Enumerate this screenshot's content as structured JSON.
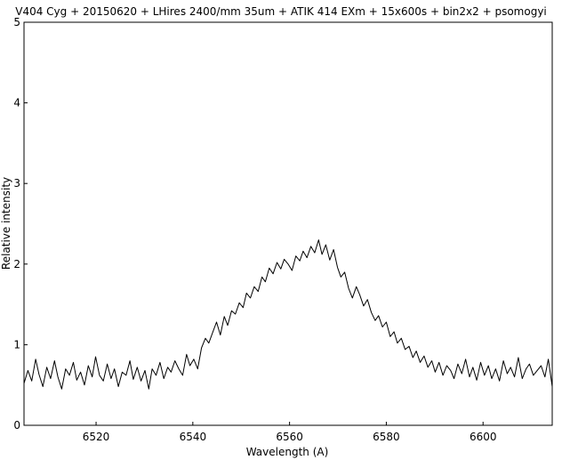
{
  "chart_data": {
    "type": "line",
    "title": "V404 Cyg + 20150620 + LHires 2400/mm 35um + ATIK 414 EXm + 15x600s + bin2x2 + psomogyi",
    "xlabel": "Wavelength (A)",
    "ylabel": "Relative intensity",
    "xlim": [
      6505.1,
      6614.3
    ],
    "ylim": [
      0,
      5
    ],
    "x_ticks": [
      6520,
      6540,
      6560,
      6580,
      6600
    ],
    "x_tick_labels": [
      "6520",
      "6540",
      "6560",
      "6580",
      "6600"
    ],
    "y_ticks": [
      0,
      1,
      2,
      3,
      4,
      5
    ],
    "y_tick_labels": [
      "0",
      "1",
      "2",
      "3",
      "4",
      "5"
    ],
    "grid": false,
    "legend": "none",
    "line_color": "#000000",
    "series": [
      {
        "x": [
          6505.1,
          6505.9,
          6506.7,
          6507.5,
          6508.2,
          6509.0,
          6509.8,
          6510.6,
          6511.4,
          6512.1,
          6512.9,
          6513.7,
          6514.5,
          6515.3,
          6516.0,
          6516.8,
          6517.6,
          6518.4,
          6519.2,
          6519.9,
          6520.7,
          6521.5,
          6522.3,
          6523.1,
          6523.8,
          6524.6,
          6525.4,
          6526.2,
          6527.0,
          6527.7,
          6528.5,
          6529.3,
          6530.1,
          6530.9,
          6531.6,
          6532.4,
          6533.2,
          6534.0,
          6534.8,
          6535.5,
          6536.3,
          6537.1,
          6537.9,
          6538.7,
          6539.4,
          6540.2,
          6541.0,
          6541.8,
          6542.6,
          6543.3,
          6544.1,
          6544.9,
          6545.7,
          6546.5,
          6547.2,
          6548.0,
          6548.8,
          6549.6,
          6550.4,
          6551.1,
          6551.9,
          6552.7,
          6553.5,
          6554.3,
          6555.0,
          6555.8,
          6556.6,
          6557.4,
          6558.2,
          6558.9,
          6559.7,
          6560.5,
          6561.3,
          6562.1,
          6562.8,
          6563.6,
          6564.4,
          6565.2,
          6566.0,
          6566.7,
          6567.5,
          6568.3,
          6569.1,
          6569.9,
          6570.6,
          6571.4,
          6572.2,
          6573.0,
          6573.8,
          6574.5,
          6575.3,
          6576.1,
          6576.9,
          6577.7,
          6578.4,
          6579.2,
          6580.0,
          6580.8,
          6581.6,
          6582.3,
          6583.1,
          6583.9,
          6584.7,
          6585.5,
          6586.2,
          6587.0,
          6587.8,
          6588.6,
          6589.4,
          6590.1,
          6590.9,
          6591.7,
          6592.5,
          6593.3,
          6594.0,
          6594.8,
          6595.6,
          6596.4,
          6597.2,
          6597.9,
          6598.7,
          6599.5,
          6600.3,
          6601.1,
          6601.8,
          6602.6,
          6603.4,
          6604.2,
          6605.0,
          6605.7,
          6606.5,
          6607.3,
          6608.1,
          6608.9,
          6609.6,
          6610.4,
          6611.2,
          6612.0,
          6612.8,
          6613.5,
          6614.3
        ],
        "y": [
          0.52,
          0.68,
          0.55,
          0.82,
          0.63,
          0.48,
          0.72,
          0.58,
          0.8,
          0.6,
          0.45,
          0.7,
          0.62,
          0.78,
          0.56,
          0.66,
          0.5,
          0.74,
          0.6,
          0.85,
          0.62,
          0.55,
          0.76,
          0.58,
          0.7,
          0.48,
          0.66,
          0.62,
          0.8,
          0.57,
          0.72,
          0.55,
          0.68,
          0.45,
          0.7,
          0.62,
          0.78,
          0.58,
          0.72,
          0.66,
          0.8,
          0.7,
          0.62,
          0.88,
          0.74,
          0.82,
          0.7,
          0.96,
          1.08,
          1.02,
          1.15,
          1.28,
          1.12,
          1.35,
          1.24,
          1.42,
          1.38,
          1.52,
          1.46,
          1.64,
          1.58,
          1.72,
          1.66,
          1.84,
          1.78,
          1.95,
          1.88,
          2.02,
          1.94,
          2.06,
          2.0,
          1.92,
          2.1,
          2.04,
          2.16,
          2.08,
          2.22,
          2.14,
          2.3,
          2.12,
          2.24,
          2.05,
          2.18,
          1.96,
          1.84,
          1.9,
          1.7,
          1.58,
          1.72,
          1.62,
          1.48,
          1.56,
          1.4,
          1.3,
          1.36,
          1.22,
          1.28,
          1.1,
          1.16,
          1.02,
          1.08,
          0.94,
          0.98,
          0.84,
          0.92,
          0.78,
          0.86,
          0.72,
          0.8,
          0.66,
          0.78,
          0.62,
          0.74,
          0.68,
          0.58,
          0.76,
          0.64,
          0.82,
          0.6,
          0.72,
          0.56,
          0.78,
          0.62,
          0.74,
          0.58,
          0.7,
          0.55,
          0.8,
          0.64,
          0.72,
          0.6,
          0.84,
          0.58,
          0.7,
          0.76,
          0.62,
          0.68,
          0.74,
          0.6,
          0.82,
          0.48
        ]
      }
    ]
  }
}
